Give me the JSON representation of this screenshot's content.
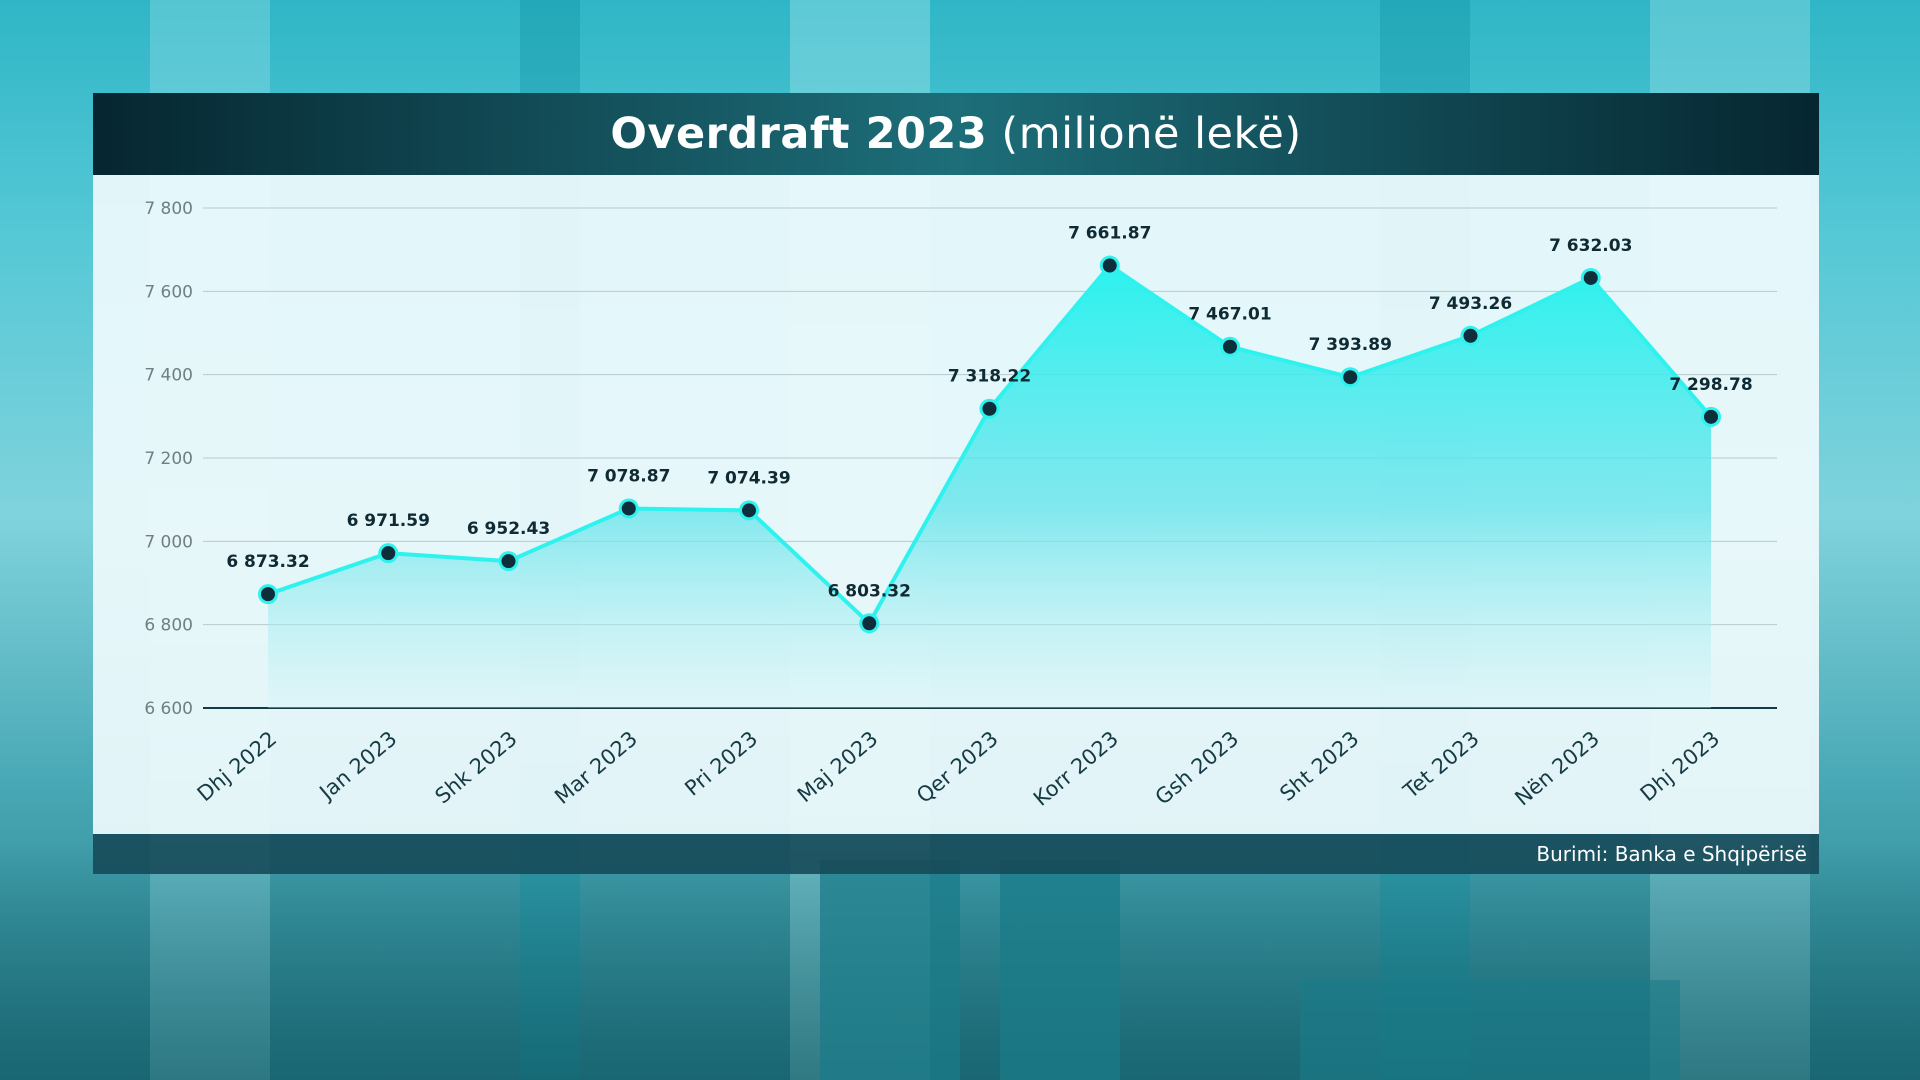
{
  "header": {
    "title_bold": "Overdraft 2023",
    "title_light": "(milionë lekë)"
  },
  "footer": {
    "source": "Burimi: Banka e Shqipërisë"
  },
  "colors": {
    "line": "#2ef2ee",
    "area_top": "#2ef2ee",
    "marker": "#0d2e3a",
    "header": "#0b3a44"
  },
  "chart_data": {
    "type": "area",
    "title": "Overdraft 2023 (milionë lekë)",
    "categories": [
      "Dhj 2022",
      "Jan 2023",
      "Shk 2023",
      "Mar 2023",
      "Pri 2023",
      "Maj 2023",
      "Qer 2023",
      "Korr 2023",
      "Gsh 2023",
      "Sht 2023",
      "Tet 2023",
      "Nën 2023",
      "Dhj 2023"
    ],
    "values": [
      6873.32,
      6971.59,
      6952.43,
      7078.87,
      7074.39,
      6803.32,
      7318.22,
      7661.87,
      7467.01,
      7393.89,
      7493.26,
      7632.03,
      7298.78
    ],
    "value_labels": [
      "6 873.32",
      "6 971.59",
      "6 952.43",
      "7 078.87",
      "7 074.39",
      "6 803.32",
      "7 318.22",
      "7 661.87",
      "7 467.01",
      "7 393.89",
      "7 493.26",
      "7 632.03",
      "7 298.78"
    ],
    "ylim": [
      6600,
      7800
    ],
    "yticks": [
      6600,
      6800,
      7000,
      7200,
      7400,
      7600,
      7800
    ],
    "ytick_labels": [
      "6 600",
      "6 800",
      "7 000",
      "7 200",
      "7 400",
      "7 600",
      "7 800"
    ],
    "grid": true,
    "legend": "none"
  }
}
